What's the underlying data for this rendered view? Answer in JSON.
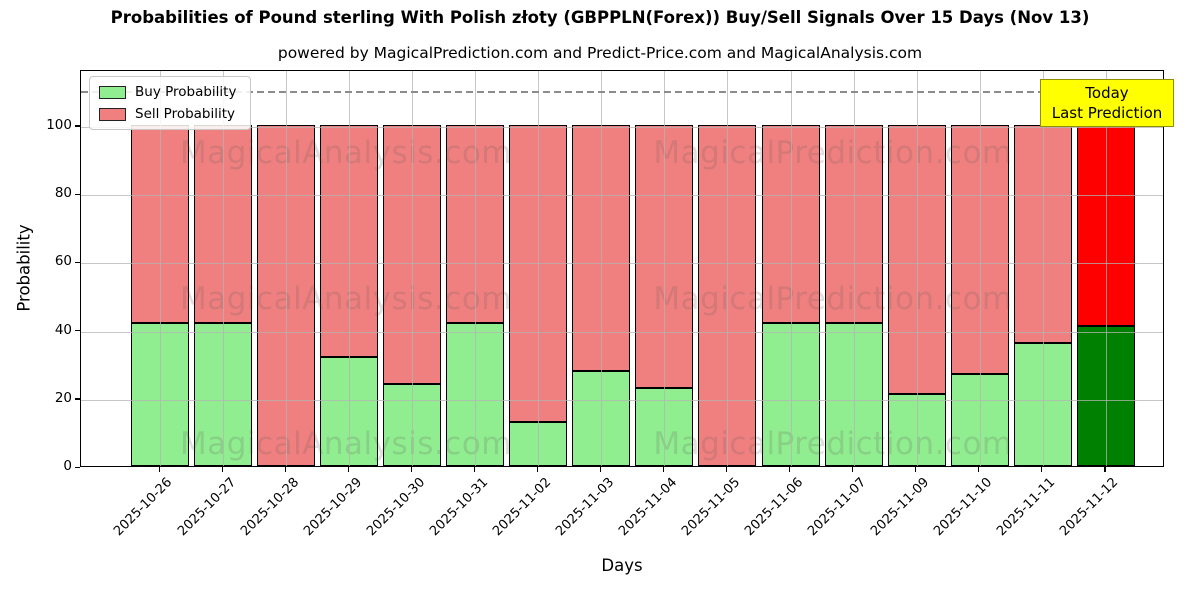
{
  "chart_data": {
    "type": "bar",
    "stacked": true,
    "title": "Probabilities of Pound sterling With Polish złoty (GBPPLN(Forex)) Buy/Sell Signals Over 15 Days (Nov 13)",
    "subtitle": "powered by MagicalPrediction.com and Predict-Price.com and MagicalAnalysis.com",
    "xlabel": "Days",
    "ylabel": "Probability",
    "categories": [
      "2025-10-26",
      "2025-10-27",
      "2025-10-28",
      "2025-10-29",
      "2025-10-30",
      "2025-10-31",
      "2025-11-02",
      "2025-11-03",
      "2025-11-04",
      "2025-11-05",
      "2025-11-06",
      "2025-11-07",
      "2025-11-09",
      "2025-11-10",
      "2025-11-11",
      "2025-11-12"
    ],
    "series": [
      {
        "name": "Buy Probability",
        "color": "#90ee90",
        "values": [
          42,
          42,
          0,
          32,
          24,
          42,
          13,
          28,
          23,
          0,
          42,
          42,
          21,
          27,
          36,
          41
        ]
      },
      {
        "name": "Sell Probability",
        "color": "#f08080",
        "values": [
          58,
          58,
          100,
          68,
          76,
          58,
          87,
          72,
          77,
          100,
          58,
          58,
          79,
          73,
          64,
          59
        ]
      }
    ],
    "today_bar": {
      "index": 15,
      "buy_color": "#008000",
      "sell_color": "#ff0000"
    },
    "ylim": [
      0,
      116.4
    ],
    "yticks": [
      0,
      20,
      40,
      60,
      80,
      100
    ],
    "grid": true,
    "legend_position": "upper-left",
    "dashed_line_y": 110.5,
    "watermark_left": "MagicalAnalysis.com",
    "watermark_right": "MagicalPrediction.com"
  },
  "legend": {
    "buy_label": "Buy Probability",
    "sell_label": "Sell Probability"
  },
  "today_box": {
    "line1": "Today",
    "line2": "Last Prediction"
  }
}
